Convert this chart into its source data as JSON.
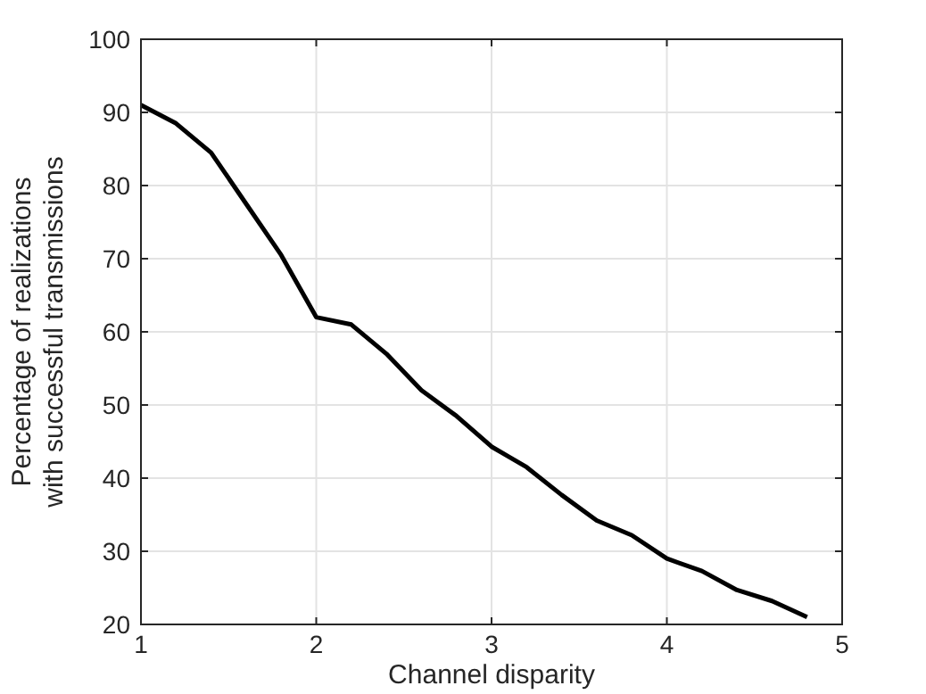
{
  "chart_data": {
    "type": "line",
    "xlabel": "Channel disparity",
    "ylabel": "Percentage of realizations\nwith successful transmissions",
    "x": [
      1,
      1.2,
      1.4,
      1.6,
      1.8,
      2,
      2.2,
      2.4,
      2.6,
      2.8,
      3,
      3.2,
      3.4,
      3.6,
      3.8,
      4,
      4.2,
      4.4,
      4.6,
      4.8
    ],
    "series": [
      {
        "color": "#000000",
        "values": [
          91,
          88.5,
          84.5,
          77.5,
          70.5,
          62,
          61,
          57,
          52,
          48.5,
          44.3,
          41.5,
          37.7,
          34.2,
          32.2,
          29,
          27.3,
          24.7,
          23.2,
          21
        ]
      }
    ],
    "xlim": [
      1,
      5
    ],
    "xticks": [
      1,
      2,
      3,
      4,
      5
    ],
    "ylim": [
      20,
      100
    ],
    "yticks": [
      20,
      30,
      40,
      50,
      60,
      70,
      80,
      90,
      100
    ],
    "grid": true,
    "marker": "none",
    "line_style": "solid"
  }
}
